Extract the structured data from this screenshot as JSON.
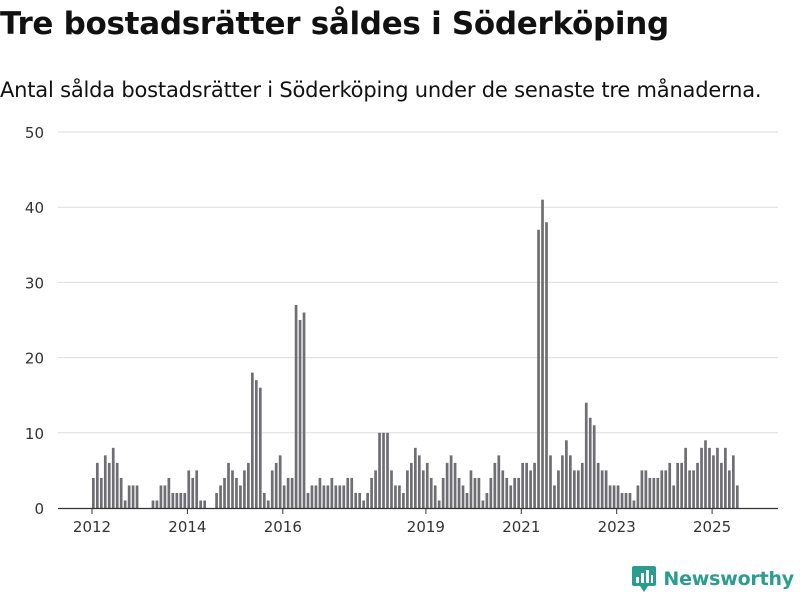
{
  "title": "Tre bostadsrätter såldes i Söderköping",
  "subtitle": "Antal sålda bostadsrätter i Söderköping under de senaste tre månaderna.",
  "brand": {
    "name": "Newsworthy",
    "icon": "newsworthy-logo-icon",
    "color": "#2a9d8f"
  },
  "chart_data": {
    "type": "bar",
    "x_start": "2012-01",
    "x_ticks": [
      "2012",
      "2014",
      "2016",
      "2019",
      "2021",
      "2023",
      "2025"
    ],
    "y_ticks": [
      "50",
      "40",
      "30",
      "20",
      "10",
      "0"
    ],
    "ylim": [
      0,
      50
    ],
    "grid": true,
    "colors": {
      "bar": "#6e6e73",
      "highlight": "#2a9d8f",
      "grid": "#dddddd",
      "axis": "#333333"
    },
    "values": [
      4,
      6,
      4,
      7,
      6,
      8,
      6,
      4,
      1,
      3,
      3,
      3,
      0,
      0,
      0,
      1,
      1,
      3,
      3,
      4,
      2,
      2,
      2,
      2,
      5,
      4,
      5,
      1,
      1,
      0,
      0,
      2,
      3,
      4,
      6,
      5,
      4,
      3,
      5,
      6,
      18,
      17,
      16,
      2,
      1,
      5,
      6,
      7,
      3,
      4,
      4,
      27,
      25,
      26,
      2,
      3,
      3,
      4,
      3,
      3,
      4,
      3,
      3,
      3,
      4,
      4,
      2,
      2,
      1,
      2,
      4,
      5,
      10,
      10,
      10,
      5,
      3,
      3,
      2,
      5,
      6,
      8,
      7,
      5,
      6,
      4,
      3,
      1,
      4,
      6,
      7,
      6,
      4,
      3,
      2,
      5,
      4,
      4,
      1,
      2,
      4,
      6,
      7,
      5,
      4,
      3,
      4,
      4,
      6,
      6,
      5,
      6,
      37,
      41,
      38,
      7,
      3,
      5,
      7,
      9,
      7,
      5,
      5,
      6,
      14,
      12,
      11,
      6,
      5,
      5,
      3,
      3,
      3,
      2,
      2,
      2,
      1,
      3,
      5,
      5,
      4,
      4,
      4,
      5,
      5,
      6,
      3,
      6,
      6,
      8,
      5,
      5,
      6,
      8,
      9,
      8,
      7,
      8,
      6,
      8,
      5,
      7,
      3
    ],
    "highlight_index": 164,
    "highlight_label": "3"
  }
}
